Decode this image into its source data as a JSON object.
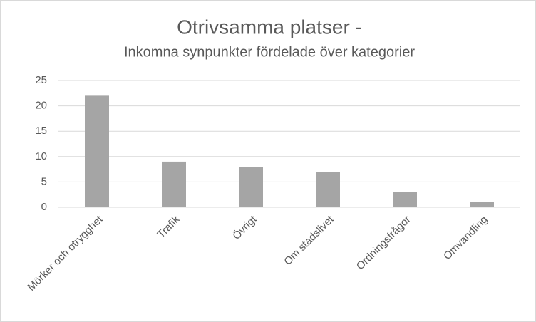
{
  "chart_data": {
    "type": "bar",
    "title": "Otrivsamma platser -",
    "subtitle": "Inkomna synpunkter fördelade över kategorier",
    "categories": [
      "Mörker och otrygghet",
      "Trafik",
      "Övrigt",
      "Om stadslivet",
      "Ordningsfrågor",
      "Omvandling"
    ],
    "values": [
      22,
      9,
      8,
      7,
      3,
      1
    ],
    "color": "#a5a5a5",
    "ylim": [
      0,
      25
    ],
    "yticks": [
      0,
      5,
      10,
      15,
      20,
      25
    ],
    "grid": true
  }
}
